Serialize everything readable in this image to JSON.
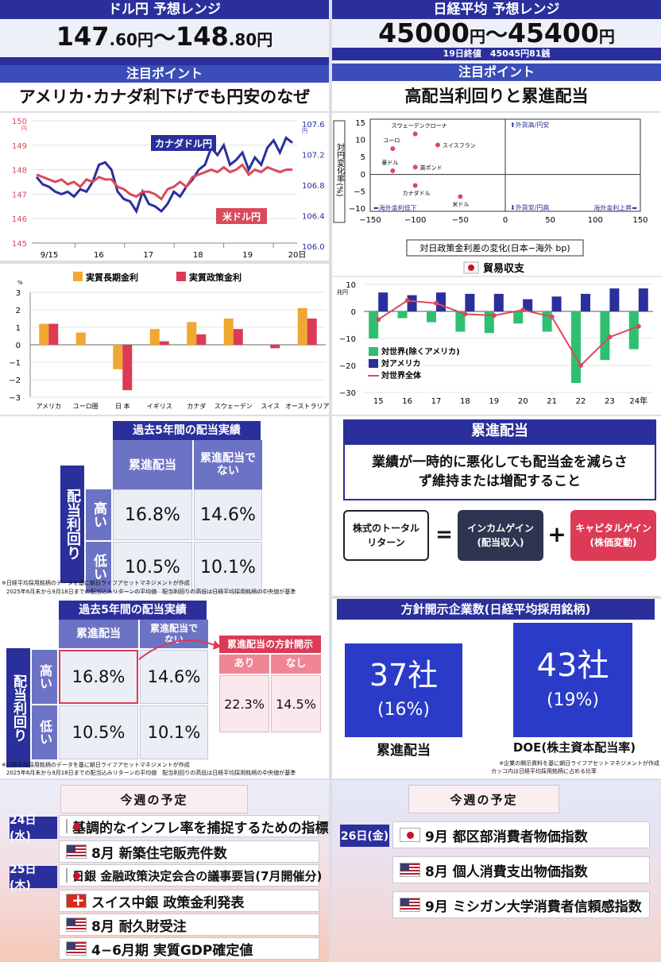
{
  "p1": {
    "header": "ドル円 予想レンジ",
    "range_low_int": "147",
    "range_low_dec": ".60",
    "range_high_int": "148",
    "range_high_dec": ".80",
    "yen": "円",
    "tilde": "〜",
    "point_header": "注目ポイント",
    "point_text": "アメリカ･カナダ利下げでも円安のなぜ"
  },
  "p2": {
    "header": "日経平均 予想レンジ",
    "range_low": "45000",
    "range_high": "45400",
    "yen": "円",
    "tilde": "〜",
    "close_note": "19日終値　45045円81銭",
    "point_header": "注目ポイント",
    "point_text": "高配当利回りと累進配当"
  },
  "chart1": {
    "type": "line",
    "series": [
      {
        "name": "カナダドル円",
        "color": "#2a2f9c",
        "values": [
          147.7,
          147.4,
          147.3,
          147.1,
          147.0,
          147.1,
          146.9,
          147.2,
          147.1,
          147.5,
          148.2,
          148.3,
          148.0,
          147.1,
          146.8,
          146.7,
          146.3,
          147.1,
          146.6,
          146.5,
          146.3,
          146.6,
          147.1,
          146.9,
          147.3,
          147.6,
          148.0,
          148.2,
          148.9,
          148.6,
          149.0,
          148.2,
          148.4,
          148.7,
          148.0,
          148.5,
          148.2,
          148.9,
          149.2,
          148.7,
          149.3,
          149.1
        ]
      },
      {
        "name": "米ドル円",
        "color": "#d94a5a",
        "values": [
          147.8,
          147.7,
          147.6,
          147.5,
          147.6,
          147.4,
          147.5,
          147.3,
          147.6,
          147.5,
          147.7,
          147.6,
          147.6,
          147.3,
          147.2,
          147.0,
          146.9,
          147.1,
          147.1,
          147.0,
          146.8,
          147.2,
          147.3,
          147.5,
          147.3,
          147.7,
          147.8,
          147.9,
          148.0,
          147.9,
          148.1,
          147.9,
          148.0,
          148.2,
          147.8,
          148.0,
          147.9,
          148.1,
          148.0,
          147.9,
          148.0,
          148.0
        ]
      }
    ],
    "x_ticks": [
      "9/15",
      "16",
      "17",
      "18",
      "19",
      "20日"
    ],
    "left_axis": {
      "ticks": [
        "150",
        "149",
        "148",
        "147",
        "146",
        "145"
      ],
      "unit": "円",
      "ylim": [
        145,
        150
      ]
    },
    "right_axis": {
      "ticks": [
        "107.6",
        "107.2",
        "106.8",
        "106.4",
        "106.0"
      ],
      "unit": "円",
      "ylim": [
        106.0,
        107.6
      ]
    }
  },
  "chart2": {
    "type": "bar",
    "categories": [
      "アメリカ",
      "ユーロ圏",
      "日 本",
      "イギリス",
      "カナダ",
      "スウェーデン",
      "スイス",
      "オーストラリア"
    ],
    "series": [
      {
        "name": "実質長期金利",
        "color": "#f0a830",
        "values": [
          1.2,
          0.7,
          -1.4,
          0.9,
          1.3,
          1.5,
          0,
          2.1
        ]
      },
      {
        "name": "実質政策金利",
        "color": "#dc3a56",
        "values": [
          1.2,
          0,
          -2.6,
          0.2,
          0.6,
          0.9,
          -0.2,
          1.5
        ]
      }
    ],
    "yticks": [
      "3",
      "2",
      "1",
      "0",
      "−1",
      "−2",
      "−3"
    ],
    "unit": "%",
    "ylim": [
      -3,
      3
    ]
  },
  "scatter": {
    "type": "scatter",
    "ylabel": "対円変化率(%)",
    "xlabel": "対日政策金利差の変化(日本−海外 bp)",
    "xticks": [
      "−150",
      "−100",
      "−50",
      "0",
      "50",
      "100",
      "150"
    ],
    "yticks": [
      "15",
      "10",
      "5",
      "0",
      "−5",
      "−10"
    ],
    "xlim": [
      -150,
      150
    ],
    "ylim": [
      -10,
      15
    ],
    "points": [
      {
        "label": "スウェーデンクローナ",
        "x": -100,
        "y": 11
      },
      {
        "label": "ユーロ",
        "x": -125,
        "y": 7
      },
      {
        "label": "スイスフラン",
        "x": -75,
        "y": 8
      },
      {
        "label": "豪ドル",
        "x": -125,
        "y": 1
      },
      {
        "label": "英ポンド",
        "x": -100,
        "y": 2
      },
      {
        "label": "カナダドル",
        "x": -100,
        "y": -3
      },
      {
        "label": "米ドル",
        "x": -50,
        "y": -6
      }
    ],
    "annotations": {
      "top_right": "⬆外貨高/円安",
      "bottom_right": "⬇外貨安/円高",
      "left": "⬅海外金利低下",
      "right": "海外金利上昇➡"
    }
  },
  "trade": {
    "type": "bar",
    "title": "貿易収支",
    "unit": "兆円",
    "categories": [
      "15",
      "16",
      "17",
      "18",
      "19",
      "20",
      "21",
      "22",
      "23",
      "24年"
    ],
    "series": [
      {
        "name": "対世界(除くアメリカ)",
        "color": "#2fbf71",
        "values": [
          -10,
          -2.5,
          -4,
          -7.5,
          -8,
          -4.5,
          -7.5,
          -26.5,
          -18,
          -14
        ]
      },
      {
        "name": "対アメリカ",
        "color": "#2a2f9c",
        "values": [
          7,
          6,
          7,
          6.5,
          6.5,
          4.5,
          5.5,
          6.5,
          8.5,
          8.5
        ]
      },
      {
        "name": "対世界全体",
        "color": "#d94a5a",
        "values": [
          -3,
          4,
          3,
          -1,
          -1.5,
          0.5,
          -2,
          -20,
          -9.5,
          -5.5
        ]
      }
    ],
    "yticks": [
      "10",
      "0",
      "−10",
      "−20",
      "−30"
    ],
    "ylim": [
      -30,
      10
    ]
  },
  "dividend1": {
    "title": "過去5年間の配当実績",
    "col1": "累進配当",
    "col2": "累進配当でない",
    "row_label": "配当利回り",
    "row1": "高い",
    "row2": "低い",
    "v11": "16.8%",
    "v12": "14.6%",
    "v21": "10.5%",
    "v22": "10.1%",
    "note1": "※日経平均採用銘柄のデータを基に朝日ライフアセットマネジメントが作成",
    "note2": "2025年6月末から9月18日までの配当込みリターンの平均値　配当利回りの高低は日経平均採用銘柄の中央値が基準"
  },
  "explain": {
    "title": "累進配当",
    "desc": "業績が一時的に悪化しても配当金を減らさず維持または増配すること",
    "total": "株式のトータルリターン",
    "eq": "=",
    "income": "インカムゲイン(配当収入)",
    "plus": "+",
    "capital": "キャピタルゲイン(株価変動)"
  },
  "dividend2": {
    "title": "過去5年間の配当実績",
    "col1": "累進配当",
    "col2": "累進配当でない",
    "row_label": "配当利回り",
    "row1": "高い",
    "row2": "低い",
    "v11": "16.8%",
    "v12": "14.6%",
    "v21": "10.5%",
    "v22": "10.1%",
    "policy_title": "累進配当の方針開示",
    "yes": "あり",
    "no": "なし",
    "v_yes": "22.3%",
    "v_no": "14.5%",
    "note1": "※日経平均採用銘柄のデータを基に朝日ライフアセットマネジメントが作成",
    "note2": "2025年6月末から9月18日までの配当込みリターンの平均値　配当利回りの高低は日経平均採用銘柄の中央値が基準"
  },
  "companies": {
    "title": "方針開示企業数(日経平均採用銘柄)",
    "c1_count": "37社",
    "c1_pct": "(16%)",
    "c1_label": "累進配当",
    "c2_count": "43社",
    "c2_pct": "(19%)",
    "c2_label": "DOE(株主資本配当率)",
    "note1": "※企業の開示資料を基に朝日ライフアセットマネジメントが作成",
    "note2": "カッコ内は日経平均採用銘柄に占める比率"
  },
  "schedule1": {
    "title": "今週の予定",
    "day1": "24日(水)",
    "day2": "25日(木)",
    "events": [
      {
        "flag": "jp",
        "text": "基調的なインフレ率を捕捉するための指標"
      },
      {
        "flag": "us",
        "text": "8月 新築住宅販売件数"
      },
      {
        "flag": "jp",
        "text": "日銀 金融政策決定会合の議事要旨(7月開催分)"
      },
      {
        "flag": "ch",
        "text": "スイス中銀 政策金利発表"
      },
      {
        "flag": "us",
        "text": "8月 耐久財受注"
      },
      {
        "flag": "us",
        "text": "4−6月期 実質GDP確定値"
      }
    ]
  },
  "schedule2": {
    "title": "今週の予定",
    "day1": "26日(金)",
    "events": [
      {
        "flag": "jp",
        "text": "9月 都区部消費者物価指数"
      },
      {
        "flag": "us",
        "text": "8月 個人消費支出物価指数"
      },
      {
        "flag": "us",
        "text": "9月 ミシガン大学消費者信頼感指数"
      }
    ]
  }
}
